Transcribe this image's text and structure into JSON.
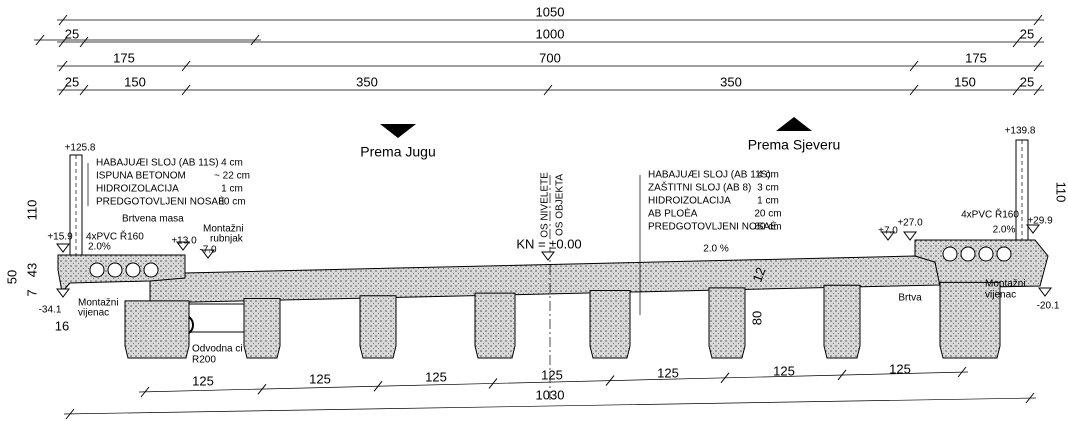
{
  "dimensions": {
    "row1": [
      "1050"
    ],
    "row2": [
      "25",
      "1000",
      "25"
    ],
    "row3": [
      "175",
      "700",
      "175"
    ],
    "row4": [
      "25",
      "150",
      "350",
      "350",
      "150",
      "25"
    ],
    "bottom": [
      "125",
      "125",
      "125",
      "125",
      "125",
      "125",
      "125"
    ],
    "bottom_total": "1030",
    "left_height": "110",
    "left_50": "50",
    "left_43": "43",
    "left_7": "7",
    "left_16": "16",
    "right_height": "110",
    "girder_height": "80",
    "slab_thickness": "12"
  },
  "directions": {
    "south": "Prema Jugu",
    "north": "Prema Sjeveru"
  },
  "left_layers": [
    {
      "name": "HABAJUÆI SLOJ (AB 11S)",
      "thickness": "4 cm"
    },
    {
      "name": "ISPUNA BETONOM",
      "thickness": "~ 22 cm"
    },
    {
      "name": "HIDROIZOLACIJA",
      "thickness": "1 cm"
    },
    {
      "name": "PREDGOTOVLJENI NOSAÈ",
      "thickness": "80 cm"
    }
  ],
  "right_layers": [
    {
      "name": "HABAJUÆI SLOJ (AB 11S)",
      "thickness": "4 cm"
    },
    {
      "name": "ZAŠTITNI SLOJ (AB 8)",
      "thickness": "3 cm"
    },
    {
      "name": "HIDROIZOLACIJA",
      "thickness": "1 cm"
    },
    {
      "name": "AB PLOÈA",
      "thickness": "20 cm"
    },
    {
      "name": "PREDGOTOVLJENI NOSAÈ",
      "thickness": "80 cm"
    }
  ],
  "elevations": {
    "left_railing": "+125.8",
    "left_edge": "+15.9",
    "left_kerb": "+13.0",
    "left_road": "-7.0",
    "left_bottom": "-34.1",
    "right_railing": "+139.8",
    "right_kerb": "+27.0",
    "right_road": "+7.0",
    "right_edge": "+29.9",
    "right_bottom": "-20.1"
  },
  "annotations": {
    "left_pvc": "4xPVC Ř160",
    "left_slope": "2.0%",
    "sealant": "Brtvena masa",
    "kerb_1": "Montažni",
    "kerb_2": "rubnjak",
    "axis_level": "OS NIVELETE",
    "axis_object": "OS OBJEKTA",
    "level": "KN = ±0.00",
    "road_slope": "2.0 %",
    "seal": "Brtva",
    "right_pvc": "4xPVC Ř160",
    "right_slope": "2.0%",
    "left_cornice_1": "Montažni",
    "left_cornice_2": "vijenac",
    "right_cornice_1": "Montažni",
    "right_cornice_2": "vijenac",
    "drain_1": "Odvodna ci",
    "drain_2": "R200"
  }
}
